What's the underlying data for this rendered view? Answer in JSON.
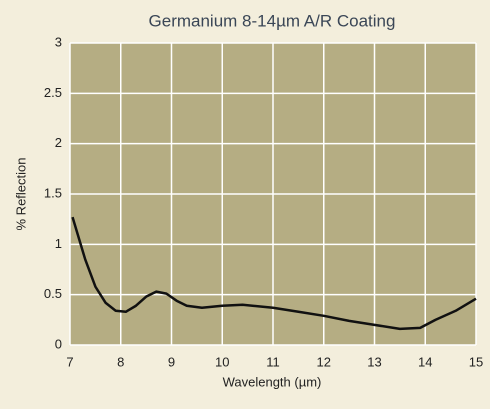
{
  "chart_data": {
    "type": "line",
    "title": "Germanium 8-14µm A/R Coating",
    "x_label": "Wavelength (µm)",
    "y_label": "% Reflection",
    "x": [
      7.05,
      7.3,
      7.5,
      7.7,
      7.9,
      8.1,
      8.3,
      8.5,
      8.7,
      8.9,
      9.1,
      9.3,
      9.6,
      10.0,
      10.4,
      11.0,
      11.5,
      12.0,
      12.5,
      13.0,
      13.5,
      13.9,
      14.2,
      14.6,
      15.0
    ],
    "series": [
      {
        "color": "#111111",
        "values": [
          1.27,
          0.85,
          0.58,
          0.42,
          0.34,
          0.33,
          0.39,
          0.48,
          0.53,
          0.51,
          0.44,
          0.39,
          0.37,
          0.39,
          0.4,
          0.37,
          0.33,
          0.29,
          0.24,
          0.2,
          0.16,
          0.17,
          0.25,
          0.34,
          0.46
        ]
      }
    ],
    "xlim": [
      7,
      15
    ],
    "ylim": [
      0,
      3
    ],
    "xticks": [
      7,
      8,
      9,
      10,
      11,
      12,
      13,
      14,
      15
    ],
    "yticks": [
      0,
      0.5,
      1,
      1.5,
      2,
      2.5,
      3
    ],
    "grid": true,
    "plot_color": "#b5ad83"
  }
}
